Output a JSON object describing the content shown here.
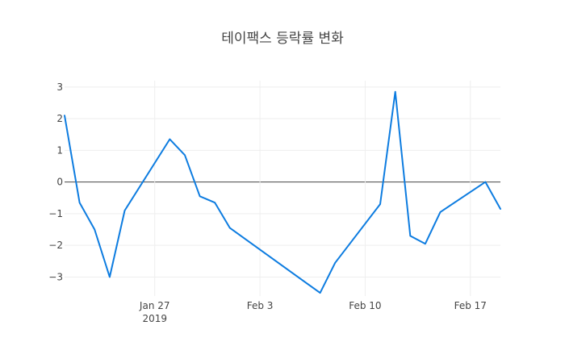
{
  "chart_data": {
    "type": "line",
    "title": "테이팩스 등락률 변화",
    "xlabel": "",
    "ylabel": "",
    "x": [
      "2019-01-21",
      "2019-01-22",
      "2019-01-23",
      "2019-01-24",
      "2019-01-25",
      "2019-01-28",
      "2019-01-29",
      "2019-01-30",
      "2019-01-31",
      "2019-02-01",
      "2019-02-07",
      "2019-02-08",
      "2019-02-11",
      "2019-02-12",
      "2019-02-13",
      "2019-02-14",
      "2019-02-15",
      "2019-02-18",
      "2019-02-19"
    ],
    "series": [
      {
        "name": "",
        "values": [
          2.1,
          -0.65,
          -1.5,
          -3.0,
          -0.9,
          1.35,
          0.85,
          -0.45,
          -0.65,
          -1.45,
          -3.5,
          -2.55,
          -0.7,
          2.85,
          -1.7,
          -1.95,
          -0.95,
          0.0,
          -0.85
        ]
      }
    ],
    "xlim": [
      "2019-01-21",
      "2019-02-19"
    ],
    "ylim": [
      -3.6,
      3.2
    ],
    "x_ticks": [
      {
        "date": "2019-01-27",
        "label": "Jan 27",
        "sublabel": "2019"
      },
      {
        "date": "2019-02-03",
        "label": "Feb 3",
        "sublabel": ""
      },
      {
        "date": "2019-02-10",
        "label": "Feb 10",
        "sublabel": ""
      },
      {
        "date": "2019-02-17",
        "label": "Feb 17",
        "sublabel": ""
      }
    ],
    "y_ticks": [
      {
        "value": 3,
        "label": "3"
      },
      {
        "value": 2,
        "label": "2"
      },
      {
        "value": 1,
        "label": "1"
      },
      {
        "value": 0,
        "label": "0"
      },
      {
        "value": -1,
        "label": "−1"
      },
      {
        "value": -2,
        "label": "−2"
      },
      {
        "value": -3,
        "label": "−3"
      }
    ],
    "grid": true,
    "zero_line": true,
    "legend": "none",
    "line_color": "#0d7ce0",
    "grid_color": "#eeeeee",
    "zero_line_color": "#444444"
  }
}
